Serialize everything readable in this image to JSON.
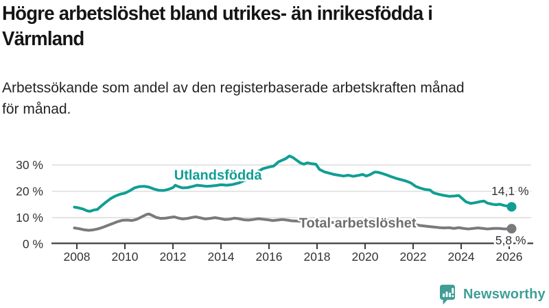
{
  "header": {
    "title": "Högre arbetslöshet bland utrikes- än inrikesfödda i Värmland",
    "title_lines": [
      "Högre arbetslöshet bland utrikes- än inrikesfödda i",
      "Värmland"
    ],
    "subtitle": "Arbetssökande som andel av den registerbaserade arbetskraften månad för månad.",
    "subtitle_lines": [
      "Arbetssökande som andel av den registerbaserade arbetskraften månad",
      "för månad."
    ]
  },
  "footer": {
    "brand": "Newsworthy",
    "logo_icon": "bar-chart-speech-bubble-icon",
    "brand_color": "#3f9e96"
  },
  "chart_data": {
    "type": "line",
    "title": "",
    "xlabel": "",
    "ylabel": "",
    "grid": "horizontal-only",
    "legend": "inline-series-labels",
    "style": {
      "grid_color": "#dcdcdc",
      "axis_color": "#3c3c3c",
      "tick_label_color": "#333333",
      "line_width": 4,
      "end_dot_radius": 7
    },
    "x_axis": {
      "ticks": [
        2008,
        2010,
        2012,
        2014,
        2016,
        2018,
        2020,
        2022,
        2024,
        2026
      ],
      "range": [
        2007.8,
        2027.0
      ]
    },
    "y_axis": {
      "ticks": [
        {
          "value": 0,
          "label": "0 %"
        },
        {
          "value": 10,
          "label": "10 %"
        },
        {
          "value": 20,
          "label": "20 %"
        },
        {
          "value": 30,
          "label": "30 %"
        }
      ],
      "range": [
        0,
        39
      ]
    },
    "series": [
      {
        "name": "Utlandsfödda",
        "slug": "utlandsfodda",
        "color": "#109e94",
        "label_color": "#109e94",
        "label_anchor": {
          "x": 2012.05,
          "y": 26.2
        },
        "end_value": 14.1,
        "end_label": "14,1 %",
        "end_label_offset": [
          25,
          -17
        ],
        "points": [
          [
            2007.9,
            14.0
          ],
          [
            2008.08,
            13.7
          ],
          [
            2008.25,
            13.3
          ],
          [
            2008.42,
            12.6
          ],
          [
            2008.55,
            12.4
          ],
          [
            2008.7,
            12.9
          ],
          [
            2008.85,
            13.1
          ],
          [
            2009.0,
            14.3
          ],
          [
            2009.2,
            15.8
          ],
          [
            2009.4,
            17.2
          ],
          [
            2009.6,
            18.2
          ],
          [
            2009.8,
            18.9
          ],
          [
            2010.0,
            19.3
          ],
          [
            2010.2,
            20.2
          ],
          [
            2010.4,
            21.3
          ],
          [
            2010.6,
            21.8
          ],
          [
            2010.8,
            21.9
          ],
          [
            2011.0,
            21.6
          ],
          [
            2011.2,
            20.9
          ],
          [
            2011.4,
            20.4
          ],
          [
            2011.6,
            20.3
          ],
          [
            2011.8,
            20.7
          ],
          [
            2012.0,
            21.4
          ],
          [
            2012.1,
            22.3
          ],
          [
            2012.25,
            21.7
          ],
          [
            2012.4,
            21.3
          ],
          [
            2012.6,
            21.4
          ],
          [
            2012.8,
            21.8
          ],
          [
            2013.0,
            22.3
          ],
          [
            2013.2,
            22.1
          ],
          [
            2013.4,
            21.9
          ],
          [
            2013.6,
            22.0
          ],
          [
            2013.8,
            22.2
          ],
          [
            2014.0,
            22.5
          ],
          [
            2014.25,
            22.3
          ],
          [
            2014.5,
            22.6
          ],
          [
            2014.75,
            23.2
          ],
          [
            2015.0,
            24.2
          ],
          [
            2015.2,
            25.4
          ],
          [
            2015.4,
            26.6
          ],
          [
            2015.6,
            27.8
          ],
          [
            2015.75,
            28.6
          ],
          [
            2016.0,
            29.2
          ],
          [
            2016.2,
            29.6
          ],
          [
            2016.4,
            31.2
          ],
          [
            2016.55,
            31.8
          ],
          [
            2016.7,
            32.4
          ],
          [
            2016.85,
            33.4
          ],
          [
            2017.0,
            32.8
          ],
          [
            2017.15,
            31.8
          ],
          [
            2017.3,
            30.8
          ],
          [
            2017.45,
            30.3
          ],
          [
            2017.6,
            30.8
          ],
          [
            2017.75,
            30.5
          ],
          [
            2017.95,
            30.3
          ],
          [
            2018.1,
            28.3
          ],
          [
            2018.3,
            27.4
          ],
          [
            2018.5,
            26.9
          ],
          [
            2018.7,
            26.4
          ],
          [
            2018.9,
            26.1
          ],
          [
            2019.1,
            25.8
          ],
          [
            2019.3,
            26.1
          ],
          [
            2019.5,
            25.7
          ],
          [
            2019.7,
            26.0
          ],
          [
            2019.9,
            26.4
          ],
          [
            2020.05,
            25.8
          ],
          [
            2020.2,
            26.3
          ],
          [
            2020.4,
            27.3
          ],
          [
            2020.55,
            27.2
          ],
          [
            2020.7,
            26.8
          ],
          [
            2020.9,
            26.2
          ],
          [
            2021.1,
            25.5
          ],
          [
            2021.3,
            24.9
          ],
          [
            2021.5,
            24.4
          ],
          [
            2021.7,
            23.9
          ],
          [
            2021.9,
            23.2
          ],
          [
            2022.1,
            21.9
          ],
          [
            2022.3,
            21.2
          ],
          [
            2022.5,
            20.7
          ],
          [
            2022.7,
            20.5
          ],
          [
            2022.85,
            19.4
          ],
          [
            2023.05,
            18.9
          ],
          [
            2023.25,
            18.5
          ],
          [
            2023.5,
            18.1
          ],
          [
            2023.7,
            18.2
          ],
          [
            2023.9,
            18.4
          ],
          [
            2024.05,
            17.2
          ],
          [
            2024.2,
            16.0
          ],
          [
            2024.4,
            15.4
          ],
          [
            2024.6,
            15.7
          ],
          [
            2024.8,
            16.1
          ],
          [
            2024.95,
            16.3
          ],
          [
            2025.1,
            15.5
          ],
          [
            2025.3,
            15.1
          ],
          [
            2025.45,
            14.9
          ],
          [
            2025.6,
            15.1
          ],
          [
            2025.8,
            14.6
          ],
          [
            2026.1,
            14.1
          ]
        ]
      },
      {
        "name": "Total arbetslöshet",
        "slug": "total-arbetsloshet",
        "color": "#7a7a7e",
        "label_color": "#6d6d72",
        "label_anchor": {
          "x": 2017.25,
          "y": 8.0
        },
        "end_value": 5.8,
        "end_label": "5,8 %",
        "end_label_offset": [
          21,
          23
        ],
        "points": [
          [
            2007.9,
            6.1
          ],
          [
            2008.1,
            5.8
          ],
          [
            2008.3,
            5.4
          ],
          [
            2008.5,
            5.2
          ],
          [
            2008.7,
            5.4
          ],
          [
            2008.9,
            5.8
          ],
          [
            2009.1,
            6.4
          ],
          [
            2009.3,
            7.1
          ],
          [
            2009.5,
            7.8
          ],
          [
            2009.7,
            8.5
          ],
          [
            2009.9,
            9.0
          ],
          [
            2010.1,
            9.1
          ],
          [
            2010.3,
            8.9
          ],
          [
            2010.5,
            9.4
          ],
          [
            2010.7,
            10.3
          ],
          [
            2010.9,
            11.2
          ],
          [
            2011.0,
            11.4
          ],
          [
            2011.15,
            10.8
          ],
          [
            2011.3,
            10.1
          ],
          [
            2011.5,
            9.7
          ],
          [
            2011.7,
            9.8
          ],
          [
            2011.9,
            10.1
          ],
          [
            2012.05,
            10.3
          ],
          [
            2012.2,
            9.9
          ],
          [
            2012.4,
            9.5
          ],
          [
            2012.6,
            9.7
          ],
          [
            2012.8,
            10.1
          ],
          [
            2012.95,
            10.3
          ],
          [
            2013.15,
            9.9
          ],
          [
            2013.35,
            9.5
          ],
          [
            2013.55,
            9.7
          ],
          [
            2013.75,
            10.0
          ],
          [
            2013.95,
            9.7
          ],
          [
            2014.15,
            9.3
          ],
          [
            2014.35,
            9.4
          ],
          [
            2014.55,
            9.8
          ],
          [
            2014.75,
            9.6
          ],
          [
            2014.95,
            9.2
          ],
          [
            2015.15,
            9.1
          ],
          [
            2015.35,
            9.3
          ],
          [
            2015.55,
            9.6
          ],
          [
            2015.75,
            9.4
          ],
          [
            2015.95,
            9.2
          ],
          [
            2016.15,
            8.9
          ],
          [
            2016.35,
            9.1
          ],
          [
            2016.55,
            9.3
          ],
          [
            2016.75,
            9.1
          ],
          [
            2016.95,
            8.8
          ],
          [
            2017.2,
            8.7
          ],
          [
            2017.5,
            8.5
          ],
          [
            2017.8,
            8.6
          ],
          [
            2018.1,
            8.3
          ],
          [
            2018.4,
            8.1
          ],
          [
            2018.7,
            8.2
          ],
          [
            2019.0,
            7.9
          ],
          [
            2019.3,
            7.8
          ],
          [
            2019.6,
            8.0
          ],
          [
            2019.9,
            8.1
          ],
          [
            2020.1,
            8.4
          ],
          [
            2020.3,
            9.0
          ],
          [
            2020.5,
            9.3
          ],
          [
            2020.7,
            9.2
          ],
          [
            2020.9,
            9.0
          ],
          [
            2021.1,
            8.8
          ],
          [
            2021.4,
            8.5
          ],
          [
            2021.7,
            8.1
          ],
          [
            2022.0,
            7.5
          ],
          [
            2022.3,
            7.0
          ],
          [
            2022.6,
            6.7
          ],
          [
            2022.9,
            6.4
          ],
          [
            2023.1,
            6.2
          ],
          [
            2023.3,
            6.1
          ],
          [
            2023.5,
            6.2
          ],
          [
            2023.7,
            5.9
          ],
          [
            2023.9,
            6.2
          ],
          [
            2024.1,
            5.9
          ],
          [
            2024.3,
            5.7
          ],
          [
            2024.5,
            5.9
          ],
          [
            2024.7,
            6.1
          ],
          [
            2024.9,
            5.9
          ],
          [
            2025.1,
            5.7
          ],
          [
            2025.35,
            5.9
          ],
          [
            2025.6,
            5.9
          ],
          [
            2025.8,
            5.7
          ],
          [
            2026.1,
            5.8
          ]
        ]
      }
    ]
  }
}
